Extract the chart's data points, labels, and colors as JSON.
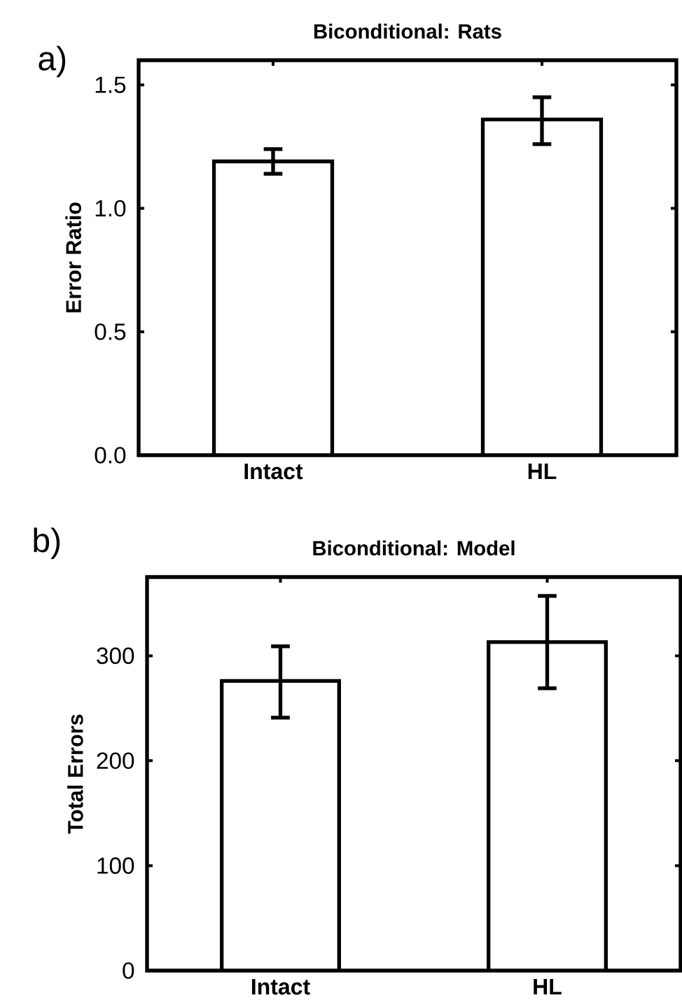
{
  "chart_data": [
    {
      "type": "bar",
      "title": "Biconditional: Rats",
      "ylabel": "Error Ratio",
      "annotations": [
        "a)"
      ],
      "categories": [
        "Intact",
        "HL"
      ],
      "values": [
        1.19,
        1.36
      ],
      "errors": [
        [
          1.14,
          1.24
        ],
        [
          1.26,
          1.45
        ]
      ],
      "color": "#ffffff",
      "ylim": [
        0,
        1.6
      ],
      "yticks": [
        {
          "value": 0,
          "label": "0.0"
        },
        0.5,
        {
          "value": 1,
          "label": "1.0"
        },
        1.5
      ]
    },
    {
      "type": "bar",
      "title": "Biconditional: Model",
      "ylabel": "Total Errors",
      "annotations": [
        "b)"
      ],
      "categories": [
        "Intact",
        "HL"
      ],
      "values": [
        276,
        313
      ],
      "errors": [
        [
          241,
          309
        ],
        [
          269,
          357
        ]
      ],
      "color": "#ffffff",
      "ylim": [
        0,
        375
      ],
      "yticks": [
        0,
        100,
        200,
        300
      ]
    }
  ]
}
